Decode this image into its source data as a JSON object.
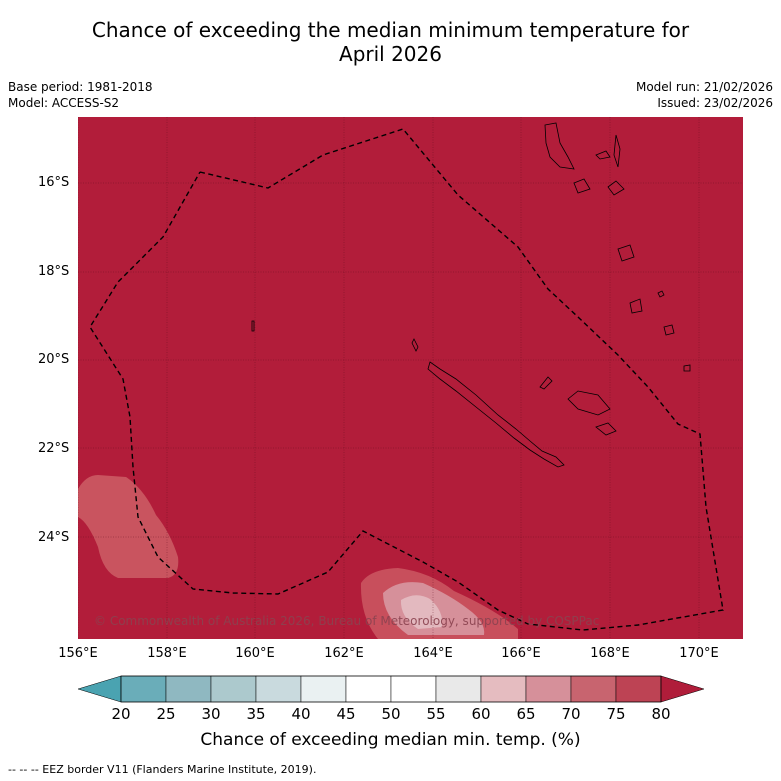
{
  "title_line1": "Chance of exceeding the median minimum temperature for",
  "title_line2": "April 2026",
  "base_period": "Base period: 1981-2018",
  "model": "Model: ACCESS-S2",
  "model_run": "Model run: 21/02/2026",
  "issued": "Issued: 23/02/2026",
  "lat_labels": [
    "16°S",
    "18°S",
    "20°S",
    "22°S",
    "24°S"
  ],
  "lon_labels": [
    "156°E",
    "158°E",
    "160°E",
    "162°E",
    "164°E",
    "166°E",
    "168°E",
    "170°E"
  ],
  "colorbar": {
    "ticks": [
      "20",
      "25",
      "30",
      "35",
      "40",
      "45",
      "50",
      "55",
      "60",
      "65",
      "70",
      "75",
      "80"
    ],
    "label": "Chance of exceeding median min. temp. (%)",
    "colors": [
      "#6aadb9",
      "#8fb8c1",
      "#acc9cd",
      "#c9dade",
      "#eaf1f2",
      "#ffffff",
      "#ffffff",
      "#e9e9e9",
      "#e5bcc0",
      "#d6909a",
      "#c8646f",
      "#bd4354"
    ],
    "under_color": "#4aa3b1",
    "over_color": "#b01d3a"
  },
  "map": {
    "background_color": "#b21d3a",
    "copyright": "© Commonwealth of Australia 2026, Bureau of Meteorology, supported by COSPPac"
  },
  "footer": "--  --  -- EEZ border V11 (Flanders Marine Institute, 2019)."
}
